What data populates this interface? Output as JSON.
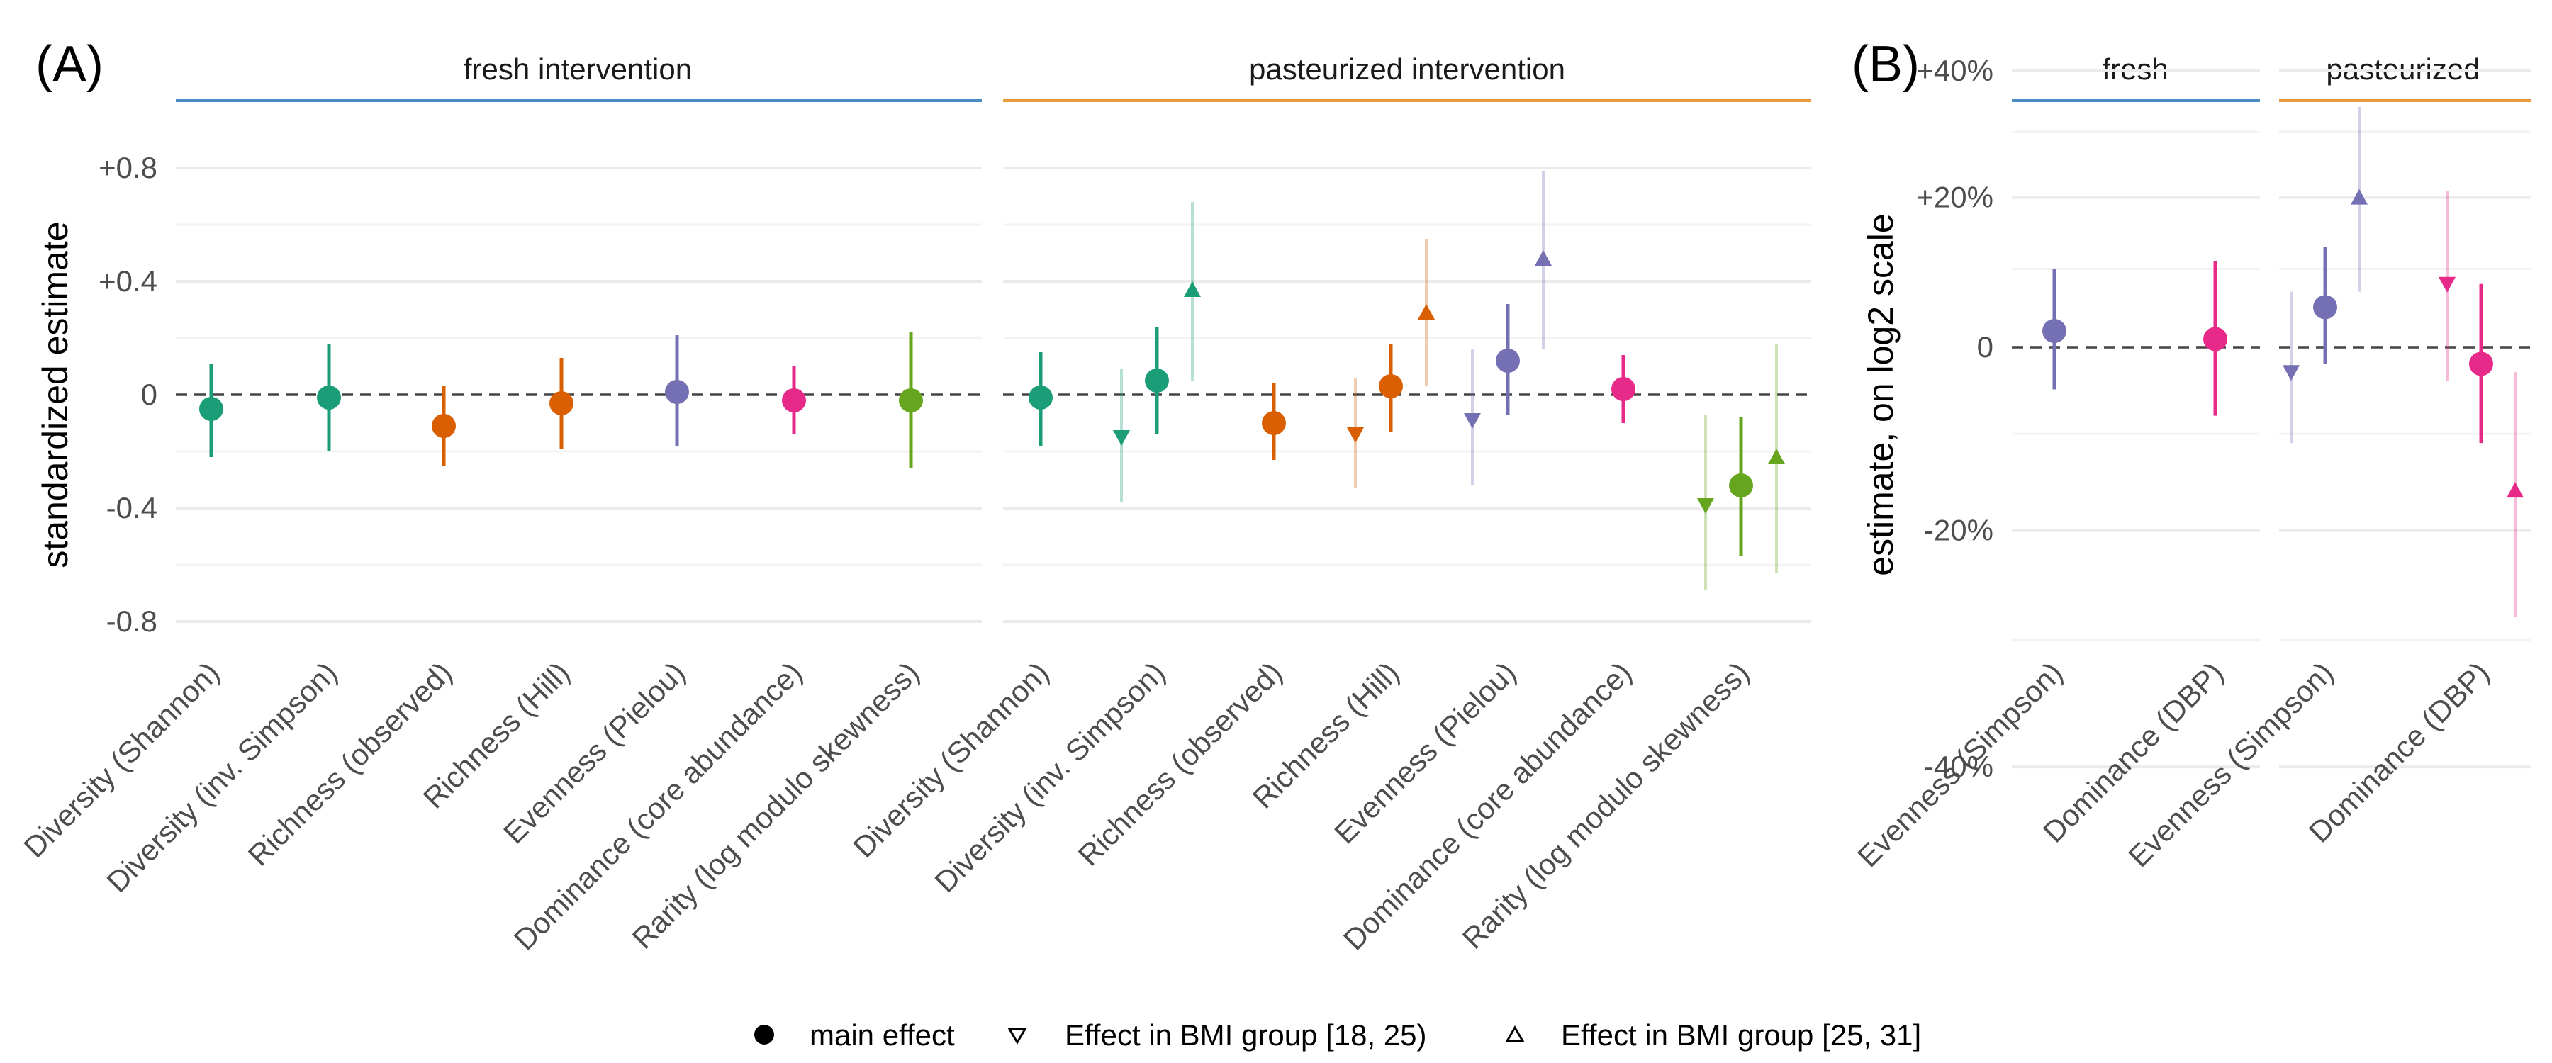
{
  "chart_data": [
    {
      "panel_tag": "(A)",
      "type": "scatter",
      "ylabel": "standardized estimate",
      "ylim": [
        -0.8,
        0.8
      ],
      "yticks": [
        {
          "value": 0.8,
          "label": "+0.8"
        },
        {
          "value": 0.4,
          "label": "+0.4"
        },
        {
          "value": 0,
          "label": "0"
        },
        {
          "value": -0.4,
          "label": "-0.4"
        },
        {
          "value": -0.8,
          "label": "-0.8"
        }
      ],
      "grid": true,
      "facets": [
        {
          "label": "fresh intervention",
          "color": "#4c8cc4",
          "categories": [
            "Diversity (Shannon)",
            "Diversity (inv. Simpson)",
            "Richness (observed)",
            "Richness (Hill)",
            "Evenness (Pielou)",
            "Dominance (core abundance)",
            "Rarity (log modulo skewness)"
          ],
          "series": [
            {
              "color": "#1b9e77",
              "points": [
                {
                  "cat": 0,
                  "group": "main",
                  "y": -0.05,
                  "lo": -0.22,
                  "hi": 0.11
                },
                {
                  "cat": 1,
                  "group": "main",
                  "y": -0.01,
                  "lo": -0.2,
                  "hi": 0.18
                }
              ]
            },
            {
              "color": "#d95f02",
              "points": [
                {
                  "cat": 2,
                  "group": "main",
                  "y": -0.11,
                  "lo": -0.25,
                  "hi": 0.03
                },
                {
                  "cat": 3,
                  "group": "main",
                  "y": -0.03,
                  "lo": -0.19,
                  "hi": 0.13
                }
              ]
            },
            {
              "color": "#7570b3",
              "points": [
                {
                  "cat": 4,
                  "group": "main",
                  "y": 0.01,
                  "lo": -0.18,
                  "hi": 0.21
                }
              ]
            },
            {
              "color": "#e7298a",
              "points": [
                {
                  "cat": 5,
                  "group": "main",
                  "y": -0.02,
                  "lo": -0.14,
                  "hi": 0.1
                }
              ]
            },
            {
              "color": "#66a61e",
              "points": [
                {
                  "cat": 6,
                  "group": "main",
                  "y": -0.02,
                  "lo": -0.26,
                  "hi": 0.22
                }
              ]
            }
          ]
        },
        {
          "label": "pasteurized intervention",
          "color": "#e89a3c",
          "categories": [
            "Diversity (Shannon)",
            "Diversity (inv. Simpson)",
            "Richness (observed)",
            "Richness (Hill)",
            "Evenness (Pielou)",
            "Dominance (core abundance)",
            "Rarity (log modulo skewness)"
          ],
          "series": [
            {
              "color": "#1b9e77",
              "points": [
                {
                  "cat": 0,
                  "group": "main",
                  "y": -0.01,
                  "lo": -0.18,
                  "hi": 0.15
                },
                {
                  "cat": 1,
                  "group": "bmi_low",
                  "y": -0.15,
                  "lo": -0.38,
                  "hi": 0.09
                },
                {
                  "cat": 1,
                  "group": "main",
                  "y": 0.05,
                  "lo": -0.14,
                  "hi": 0.24
                },
                {
                  "cat": 1,
                  "group": "bmi_high",
                  "y": 0.37,
                  "lo": 0.05,
                  "hi": 0.68
                }
              ]
            },
            {
              "color": "#d95f02",
              "points": [
                {
                  "cat": 2,
                  "group": "main",
                  "y": -0.1,
                  "lo": -0.23,
                  "hi": 0.04
                },
                {
                  "cat": 3,
                  "group": "bmi_low",
                  "y": -0.14,
                  "lo": -0.33,
                  "hi": 0.06
                },
                {
                  "cat": 3,
                  "group": "main",
                  "y": 0.03,
                  "lo": -0.13,
                  "hi": 0.18
                },
                {
                  "cat": 3,
                  "group": "bmi_high",
                  "y": 0.29,
                  "lo": 0.03,
                  "hi": 0.55
                }
              ]
            },
            {
              "color": "#7570b3",
              "points": [
                {
                  "cat": 4,
                  "group": "bmi_low",
                  "y": -0.09,
                  "lo": -0.32,
                  "hi": 0.16
                },
                {
                  "cat": 4,
                  "group": "main",
                  "y": 0.12,
                  "lo": -0.07,
                  "hi": 0.32
                },
                {
                  "cat": 4,
                  "group": "bmi_high",
                  "y": 0.48,
                  "lo": 0.16,
                  "hi": 0.79
                }
              ]
            },
            {
              "color": "#e7298a",
              "points": [
                {
                  "cat": 5,
                  "group": "main",
                  "y": 0.02,
                  "lo": -0.1,
                  "hi": 0.14
                }
              ]
            },
            {
              "color": "#66a61e",
              "points": [
                {
                  "cat": 6,
                  "group": "bmi_low",
                  "y": -0.39,
                  "lo": -0.69,
                  "hi": -0.07
                },
                {
                  "cat": 6,
                  "group": "main",
                  "y": -0.32,
                  "lo": -0.57,
                  "hi": -0.08
                },
                {
                  "cat": 6,
                  "group": "bmi_high",
                  "y": -0.22,
                  "lo": -0.63,
                  "hi": 0.18
                }
              ]
            }
          ]
        }
      ]
    },
    {
      "panel_tag": "(B)",
      "type": "scatter",
      "ylabel": "estimate, on log2 scale",
      "yscale": "log2",
      "ylim": [
        "-40%",
        "+40%"
      ],
      "yticks": [
        {
          "value": 0.4,
          "label": "+40%"
        },
        {
          "value": 0.2,
          "label": "+20%"
        },
        {
          "value": 0,
          "label": "0"
        },
        {
          "value": -0.2,
          "label": "-20%"
        },
        {
          "value": -0.4,
          "label": "-40%"
        }
      ],
      "grid": true,
      "facets": [
        {
          "label": "fresh",
          "color": "#4c8cc4",
          "categories": [
            "Evenness (Simpson)",
            "Dominance (DBP)"
          ],
          "series": [
            {
              "color": "#7570b3",
              "points": [
                {
                  "cat": 0,
                  "group": "main",
                  "y": 0.02,
                  "lo": -0.05,
                  "hi": 0.1
                }
              ]
            },
            {
              "color": "#e7298a",
              "points": [
                {
                  "cat": 1,
                  "group": "main",
                  "y": 0.01,
                  "lo": -0.08,
                  "hi": 0.11
                }
              ]
            }
          ]
        },
        {
          "label": "pasteurized",
          "color": "#e89a3c",
          "categories": [
            "Evenness (Simpson)",
            "Dominance (DBP)"
          ],
          "series": [
            {
              "color": "#7570b3",
              "points": [
                {
                  "cat": 0,
                  "group": "bmi_low",
                  "y": -0.03,
                  "lo": -0.11,
                  "hi": 0.07
                },
                {
                  "cat": 0,
                  "group": "main",
                  "y": 0.05,
                  "lo": -0.02,
                  "hi": 0.13
                },
                {
                  "cat": 0,
                  "group": "bmi_high",
                  "y": 0.2,
                  "lo": 0.07,
                  "hi": 0.34
                }
              ]
            },
            {
              "color": "#e7298a",
              "points": [
                {
                  "cat": 1,
                  "group": "bmi_low",
                  "y": 0.08,
                  "lo": -0.04,
                  "hi": 0.21
                },
                {
                  "cat": 1,
                  "group": "main",
                  "y": -0.02,
                  "lo": -0.11,
                  "hi": 0.08
                },
                {
                  "cat": 1,
                  "group": "bmi_high",
                  "y": -0.16,
                  "lo": -0.28,
                  "hi": -0.03
                }
              ]
            }
          ]
        }
      ]
    }
  ],
  "legend": {
    "placement": "bottom",
    "items": [
      {
        "shape": "circle",
        "label": "main effect"
      },
      {
        "shape": "triangle-down",
        "label": "Effect in BMI group [18, 25)"
      },
      {
        "shape": "triangle-up",
        "label": "Effect in BMI group [25, 31]"
      }
    ]
  }
}
